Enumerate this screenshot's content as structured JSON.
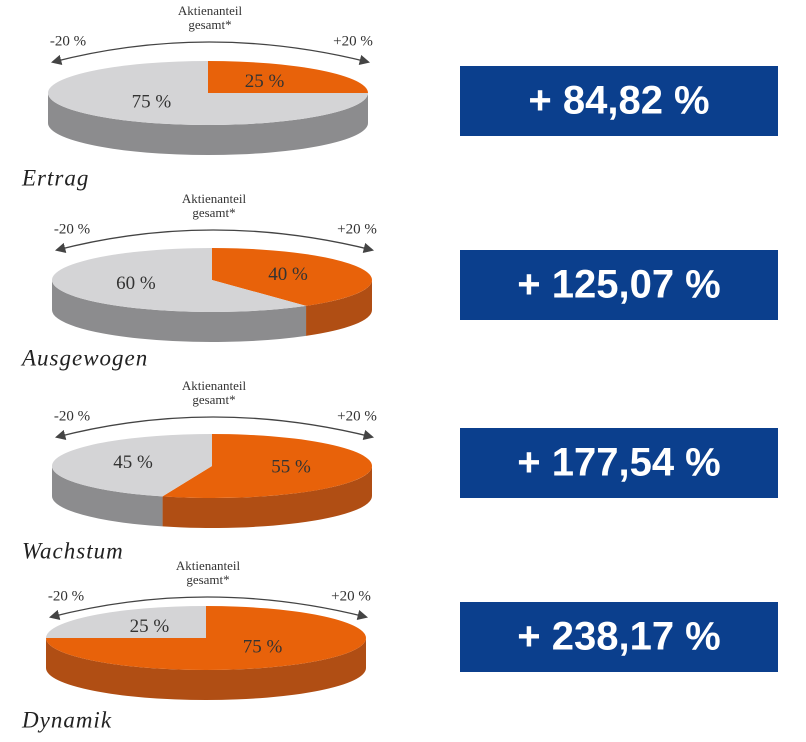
{
  "chart_data": [
    {
      "type": "pie",
      "title": "Ertrag",
      "values": [
        25,
        75
      ],
      "value_labels": [
        "25 %",
        "75 %"
      ],
      "colors": [
        "#e8620a",
        "#d4d4d6"
      ],
      "side_colors": [
        "#b04e14",
        "#8c8c8e"
      ],
      "annotations": [
        "Aktienanteil",
        "gesamt*",
        "-20 %",
        "+20 %"
      ],
      "result": "+ 84,82 %",
      "result_color": "#0b3f8d"
    },
    {
      "type": "pie",
      "title": "Ausgewogen",
      "values": [
        40,
        60
      ],
      "value_labels": [
        "40 %",
        "60 %"
      ],
      "colors": [
        "#e8620a",
        "#d4d4d6"
      ],
      "side_colors": [
        "#b04e14",
        "#8c8c8e"
      ],
      "annotations": [
        "Aktienanteil",
        "gesamt*",
        "-20 %",
        "+20 %"
      ],
      "result": "+ 125,07 %",
      "result_color": "#0b3f8d"
    },
    {
      "type": "pie",
      "title": "Wachstum",
      "values": [
        55,
        45
      ],
      "value_labels": [
        "55 %",
        "45 %"
      ],
      "colors": [
        "#e8620a",
        "#d4d4d6"
      ],
      "side_colors": [
        "#b04e14",
        "#8c8c8e"
      ],
      "annotations": [
        "Aktienanteil",
        "gesamt*",
        "-20 %",
        "+20 %"
      ],
      "result": "+ 177,54 %",
      "result_color": "#0b3f8d"
    },
    {
      "type": "pie",
      "title": "Dynamik",
      "values": [
        75,
        25
      ],
      "value_labels": [
        "75 %",
        "25 %"
      ],
      "colors": [
        "#e8620a",
        "#d4d4d6"
      ],
      "side_colors": [
        "#b04e14",
        "#8c8c8e"
      ],
      "annotations": [
        "Aktienanteil",
        "gesamt*",
        "-20 %",
        "+20 %"
      ],
      "result": "+ 238,17 %",
      "result_color": "#0b3f8d"
    }
  ]
}
